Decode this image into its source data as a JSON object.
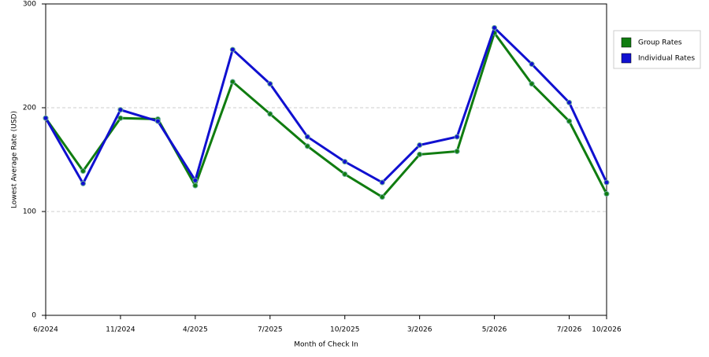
{
  "chart_data": {
    "type": "line",
    "x_label": "Month of Check In",
    "y_label": "Lowest Average Rate (USD)",
    "categories": [
      "6/2024",
      null,
      "11/2024",
      null,
      "4/2025",
      null,
      "7/2025",
      null,
      "10/2025",
      null,
      "3/2026",
      null,
      "5/2026",
      null,
      "7/2026",
      "10/2026"
    ],
    "series": [
      {
        "name": "Group Rates",
        "color": "#107c10",
        "values": [
          190,
          139,
          190,
          189,
          125,
          225,
          194,
          163,
          136,
          114,
          155,
          158,
          272,
          223,
          187,
          117
        ]
      },
      {
        "name": "Individual Rates",
        "color": "#1010d0",
        "values": [
          190,
          127,
          198,
          187,
          130,
          256,
          223,
          172,
          148,
          128,
          164,
          172,
          277,
          242,
          205,
          128
        ]
      }
    ],
    "ylim": [
      0,
      300
    ],
    "yticks": [
      0,
      100,
      200,
      300
    ],
    "grid": true,
    "legend": "right"
  }
}
